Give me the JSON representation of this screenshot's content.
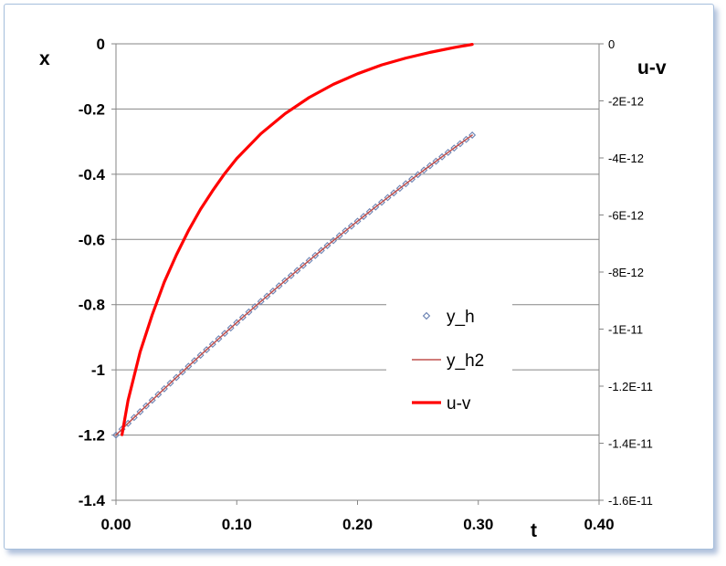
{
  "chart_data": {
    "type": "line",
    "xlabel": "t",
    "ylabel_left": "x",
    "ylabel_right": "u-v",
    "xlim": [
      0,
      0.4
    ],
    "ylim_left": [
      -1.4,
      0
    ],
    "ylim_right": [
      -1.6e-11,
      0
    ],
    "x_ticks": [
      "0.00",
      "0.10",
      "0.20",
      "0.30",
      "0.40"
    ],
    "y_left_ticks": [
      "0",
      "-0.2",
      "-0.4",
      "-0.6",
      "-0.8",
      "-1",
      "-1.2",
      "-1.4"
    ],
    "y_right_ticks": [
      "0",
      "-2E-12",
      "-4E-12",
      "-6E-12",
      "-8E-12",
      "-1E-11",
      "-1.2E-11",
      "-1.4E-11",
      "-1.6E-11"
    ],
    "grid": "horizontal",
    "legend_position": "right-middle",
    "series": [
      {
        "name": "y_h",
        "axis": "left",
        "style": "markers",
        "marker": "diamond",
        "color": "#6d84b4",
        "x_start": 0.0,
        "x_end": 0.295,
        "x_step": 0.005,
        "y_start": -1.2,
        "y_end": -0.28,
        "curvature": 0.16
      },
      {
        "name": "y_h2",
        "axis": "left",
        "style": "line",
        "color": "#c0504d",
        "x_start": 0.0,
        "x_end": 0.295,
        "x_step": 0.005,
        "y_start": -1.2,
        "y_end": -0.28,
        "curvature": 0.16
      },
      {
        "name": "u-v",
        "axis": "right",
        "style": "line",
        "color": "#ff0000",
        "x": [
          0.005,
          0.01,
          0.02,
          0.03,
          0.04,
          0.05,
          0.06,
          0.07,
          0.08,
          0.09,
          0.1,
          0.12,
          0.14,
          0.16,
          0.18,
          0.2,
          0.22,
          0.24,
          0.26,
          0.28,
          0.295
        ],
        "y": [
          -1.37e-11,
          -1.25e-11,
          -1.08e-11,
          -9.5e-12,
          -8.35e-12,
          -7.4e-12,
          -6.55e-12,
          -5.8e-12,
          -5.15e-12,
          -4.55e-12,
          -4.02e-12,
          -3.15e-12,
          -2.45e-12,
          -1.88e-12,
          -1.42e-12,
          -1.05e-12,
          -7.4e-13,
          -5e-13,
          -3e-13,
          -1.3e-13,
          -2e-14
        ]
      }
    ],
    "legend": [
      "y_h",
      "y_h2",
      "u-v"
    ]
  }
}
